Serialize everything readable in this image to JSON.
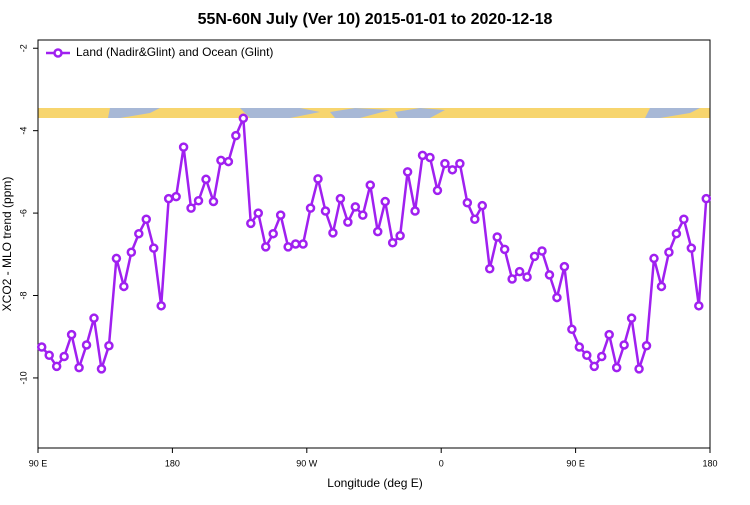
{
  "chart_data": {
    "type": "line",
    "title": "55N-60N July (Ver 10)   2015-01-01 to 2020-12-18",
    "x_label": "Longitude (deg E)",
    "y_label": "XCO2 - MLO trend (ppm)",
    "xlim": [
      90,
      540
    ],
    "ylim": [
      -11.7,
      -1.8
    ],
    "xticks": [
      {
        "value": 90,
        "label": "90 E"
      },
      {
        "value": 180,
        "label": "180"
      },
      {
        "value": 270,
        "label": "90 W"
      },
      {
        "value": 360,
        "label": "0"
      },
      {
        "value": 450,
        "label": "90 E"
      },
      {
        "value": 540,
        "label": "180"
      }
    ],
    "yticks": [
      -2,
      -4,
      -6,
      -8,
      -10
    ],
    "legend": "topleft",
    "x": [
      92.5,
      97.5,
      102.5,
      107.5,
      112.5,
      117.5,
      122.5,
      127.5,
      132.5,
      137.5,
      142.5,
      147.5,
      152.5,
      157.5,
      162.5,
      167.5,
      172.5,
      177.5,
      182.5,
      187.5,
      192.5,
      197.5,
      202.5,
      207.5,
      212.5,
      217.5,
      222.5,
      227.5,
      232.5,
      237.5,
      242.5,
      247.5,
      252.5,
      257.5,
      262.5,
      267.5,
      272.5,
      277.5,
      282.5,
      287.5,
      292.5,
      297.5,
      302.5,
      307.5,
      312.5,
      317.5,
      322.5,
      327.5,
      332.5,
      337.5,
      342.5,
      347.5,
      352.5,
      357.5,
      362.5,
      367.5,
      372.5,
      377.5,
      382.5,
      387.5,
      392.5,
      397.5,
      402.5,
      407.5,
      412.5,
      417.5,
      422.5,
      427.5,
      432.5,
      437.5,
      442.5,
      447.5,
      452.5,
      457.5,
      462.5,
      467.5,
      472.5,
      477.5,
      482.5,
      487.5,
      492.5,
      497.5,
      502.5,
      507.5,
      512.5,
      517.5,
      522.5,
      527.5,
      532.5,
      537.5
    ],
    "series": [
      {
        "name": "Land (Nadir&Glint) and Ocean (Glint)",
        "color": "#a020f0",
        "values": [
          -9.25,
          -9.45,
          -9.72,
          -9.48,
          -8.95,
          -9.75,
          -9.2,
          -8.55,
          -9.78,
          -9.22,
          -7.1,
          -7.78,
          -6.95,
          -6.5,
          -6.15,
          -6.85,
          -8.25,
          -5.65,
          -5.6,
          -4.4,
          -5.88,
          -5.7,
          -5.18,
          -5.72,
          -4.72,
          -4.75,
          -4.12,
          -3.7,
          -6.25,
          -6.0,
          -6.82,
          -6.5,
          -6.05,
          -6.82,
          -6.75,
          -6.75,
          -5.88,
          -5.17,
          -5.95,
          -6.48,
          -5.65,
          -6.22,
          -5.85,
          -6.05,
          -5.32,
          -6.45,
          -5.72,
          -6.72,
          -6.55,
          -5.0,
          -5.95,
          -4.6,
          -4.65,
          -5.45,
          -4.8,
          -4.95,
          -4.8,
          -5.75,
          -6.15,
          -5.82,
          -7.35,
          -6.58,
          -6.88,
          -7.6,
          -7.42,
          -7.55,
          -7.05,
          -6.92,
          -7.5,
          -8.05,
          -7.3,
          -8.82,
          -9.25,
          -9.45,
          -9.72,
          -9.48,
          -8.95,
          -9.75,
          -9.2,
          -8.55,
          -9.78,
          -9.22,
          -7.1,
          -7.78,
          -6.95,
          -6.5,
          -6.15,
          -6.85,
          -8.25,
          -5.65
        ]
      }
    ]
  }
}
